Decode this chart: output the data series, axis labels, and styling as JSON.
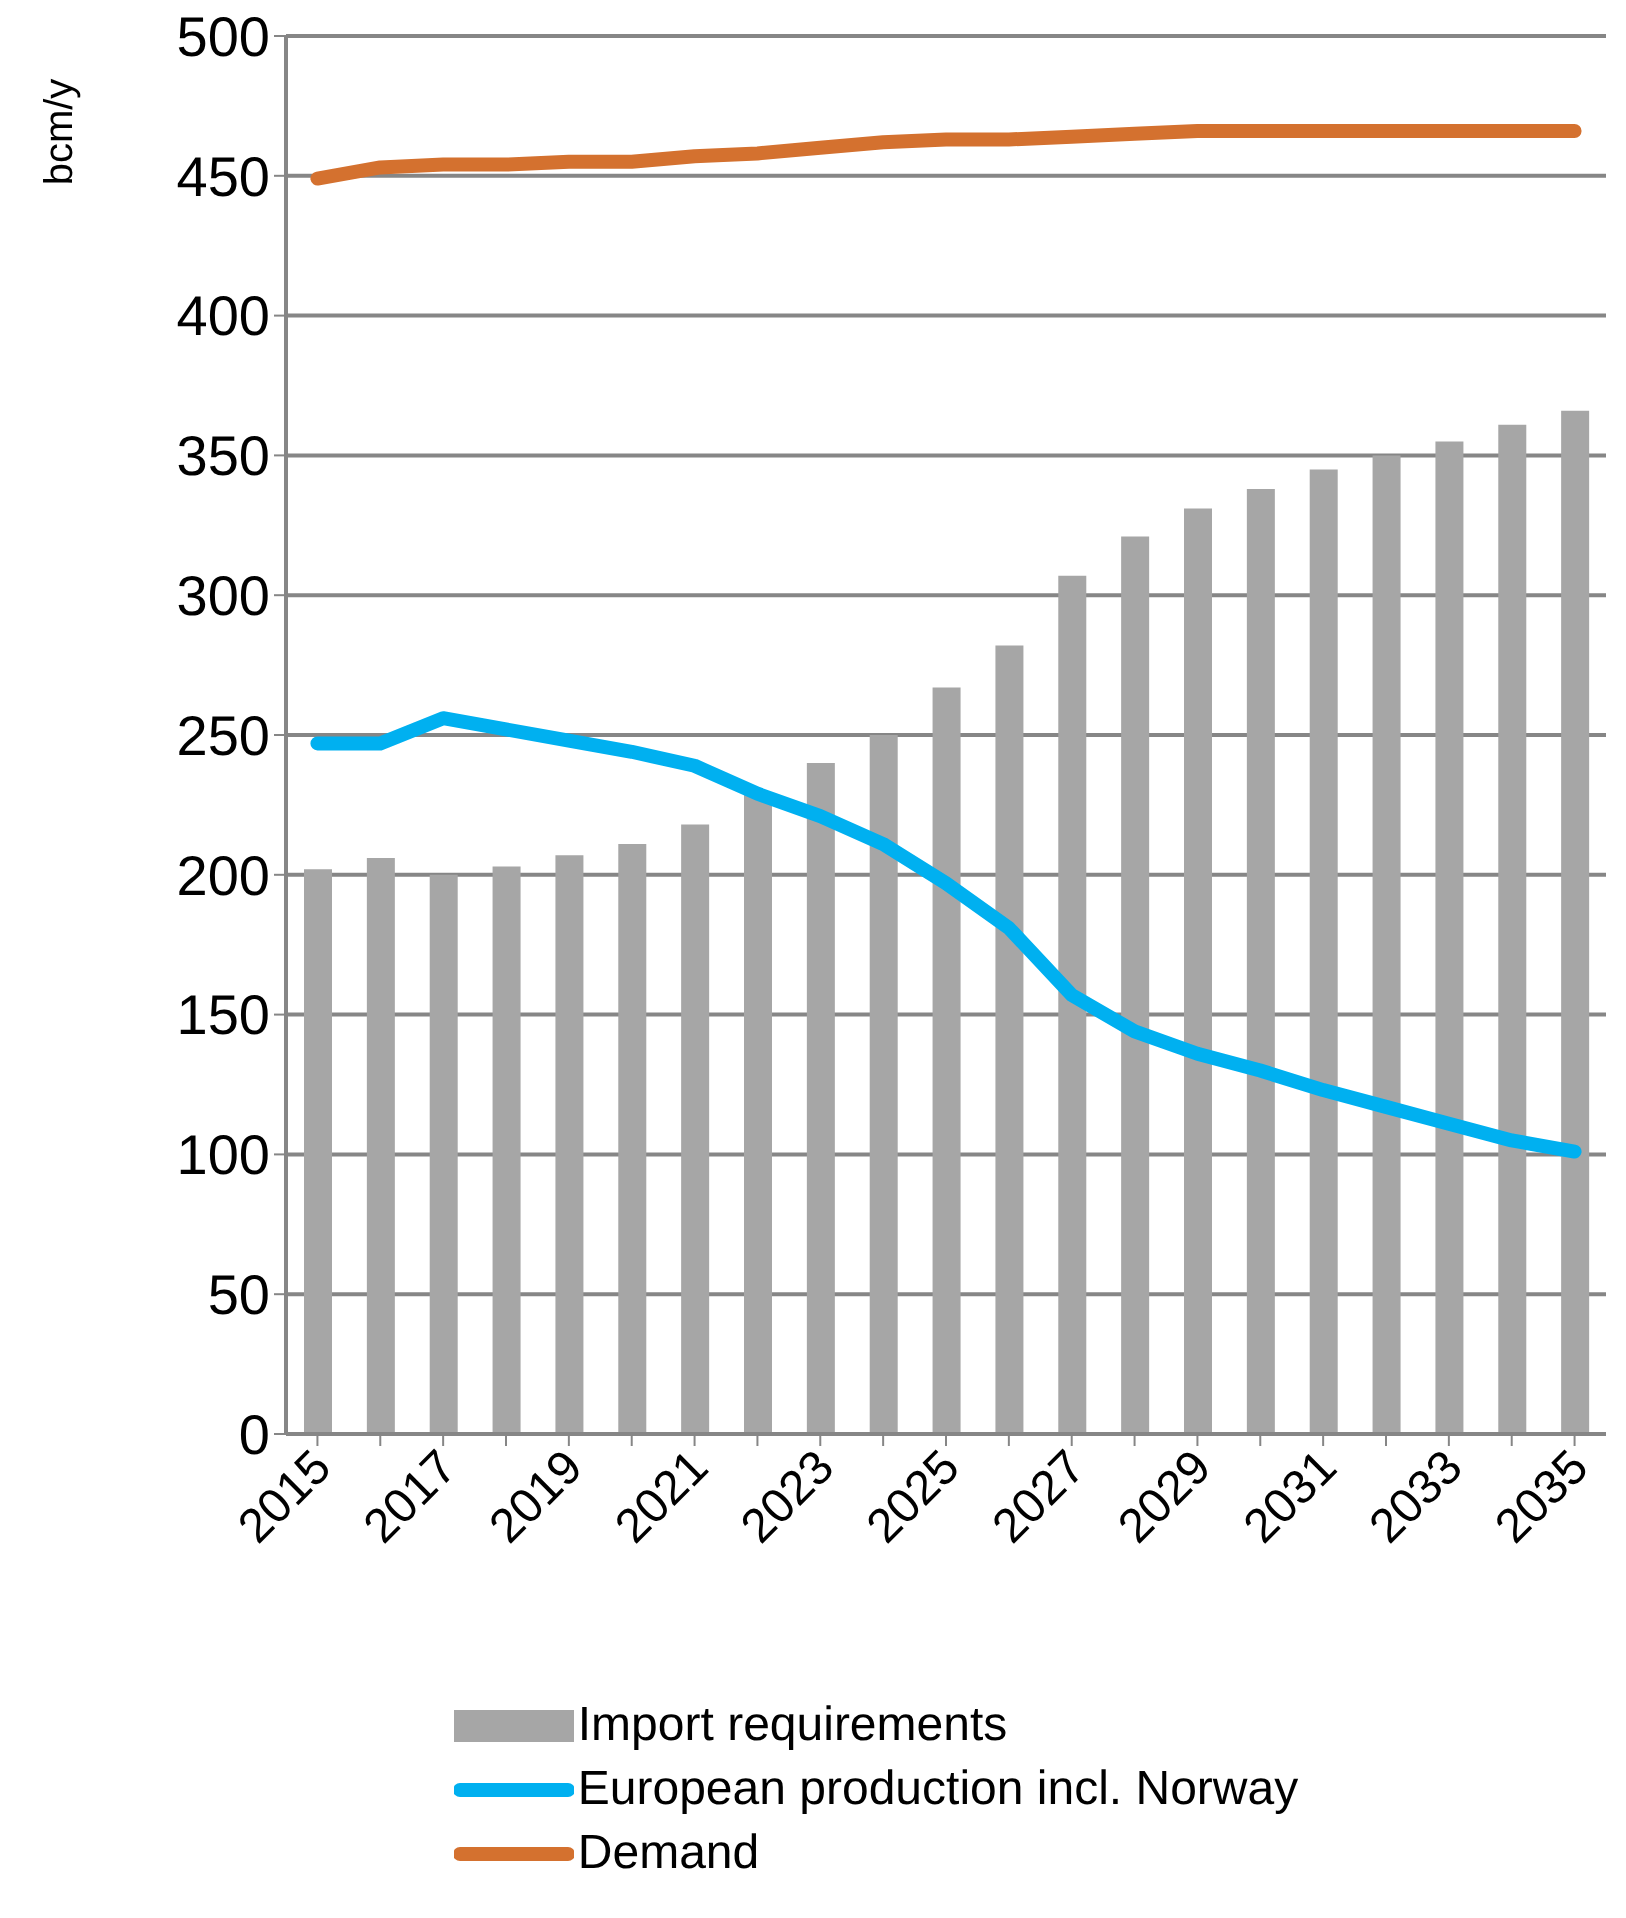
{
  "chart_data": {
    "type": "bar",
    "ylabel": "bcm/y",
    "categories": [
      "2015",
      null,
      "2017",
      null,
      "2019",
      null,
      "2021",
      null,
      "2023",
      null,
      "2025",
      null,
      "2027",
      null,
      "2029",
      null,
      "2031",
      null,
      "2033",
      null,
      "2035"
    ],
    "series": [
      {
        "name": "Import requirements",
        "color": "#a6a6a6",
        "values": [
          202,
          206,
          200,
          203,
          207,
          211,
          218,
          229,
          240,
          250,
          267,
          282,
          307,
          321,
          331,
          338,
          345,
          350,
          355,
          361,
          366
        ]
      },
      {
        "name": "European production incl. Norway",
        "type": "line",
        "color": "#00b0f0",
        "values": [
          247,
          247,
          256,
          252,
          248,
          244,
          239,
          229,
          221,
          211,
          197,
          181,
          157,
          144,
          136,
          130,
          123,
          117,
          111,
          105,
          101
        ]
      },
      {
        "name": "Demand",
        "type": "line",
        "color": "#d4712f",
        "values": [
          449,
          453,
          454,
          454,
          455,
          455,
          457,
          458,
          460,
          462,
          463,
          463,
          464,
          465,
          466,
          466,
          466,
          466,
          466,
          466,
          466
        ]
      }
    ],
    "ylim": [
      0,
      500
    ],
    "yticks": [
      0,
      50,
      100,
      150,
      200,
      250,
      300,
      350,
      400,
      450,
      500
    ],
    "grid": "y",
    "legend": "bottom",
    "marker": "none"
  }
}
